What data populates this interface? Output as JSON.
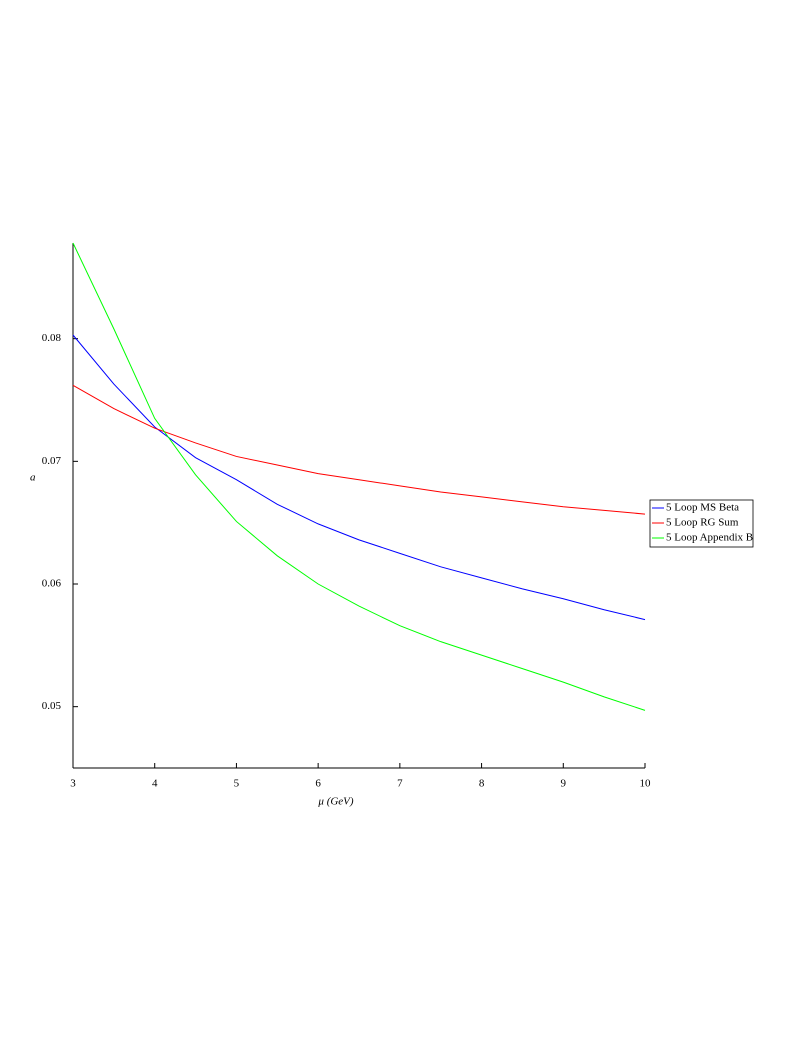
{
  "chart_data": {
    "type": "line",
    "x_label": "μ (GeV)",
    "y_label": "a",
    "x": [
      3,
      3.5,
      4,
      4.5,
      5,
      5.5,
      6,
      6.5,
      7,
      7.5,
      8,
      8.5,
      9,
      9.5,
      10
    ],
    "series": [
      {
        "name": "5 Loop MS Beta",
        "color": "#0000ff",
        "values": [
          0.0803,
          0.0763,
          0.0728,
          0.0703,
          0.0685,
          0.0665,
          0.0649,
          0.0636,
          0.0625,
          0.0614,
          0.0605,
          0.0596,
          0.0588,
          0.0579,
          0.0571
        ]
      },
      {
        "name": "5 Loop RG Sum",
        "color": "#ff0000",
        "values": [
          0.0762,
          0.0743,
          0.0727,
          0.0715,
          0.0704,
          0.0697,
          0.069,
          0.0685,
          0.068,
          0.0675,
          0.0671,
          0.0667,
          0.0663,
          0.066,
          0.0657
        ]
      },
      {
        "name": "5 Loop Appendix B",
        "color": "#00ff00",
        "values": [
          0.0878,
          0.0808,
          0.0735,
          0.0689,
          0.0651,
          0.0623,
          0.06,
          0.0582,
          0.0566,
          0.0553,
          0.0542,
          0.0531,
          0.052,
          0.0508,
          0.0497
        ]
      }
    ],
    "xlim": [
      3,
      10
    ],
    "xticks": [
      3,
      4,
      5,
      6,
      7,
      8,
      9,
      10
    ],
    "ylim": [
      0.045,
      0.0878
    ],
    "yticks": [
      0.05,
      0.06,
      0.07,
      0.08
    ],
    "legend": "right"
  }
}
